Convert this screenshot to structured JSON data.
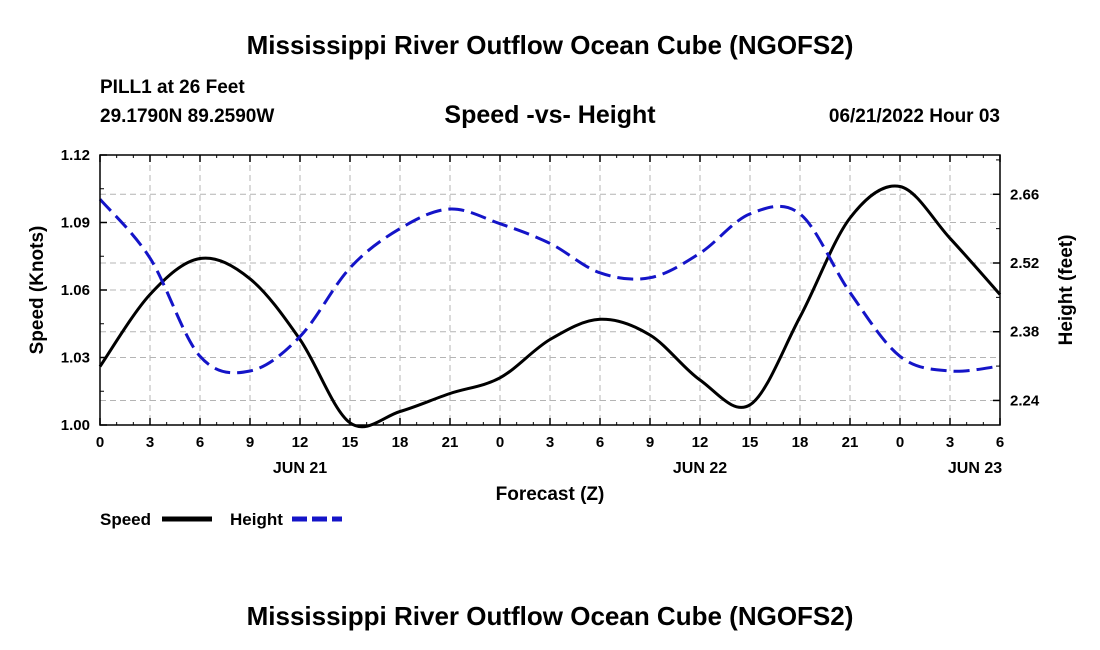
{
  "header": {
    "title": "Mississippi River Outflow Ocean Cube (NGOFS2)",
    "station": "PILL1 at 26 Feet",
    "coords": "29.1790N  89.2590W",
    "datetime": "06/21/2022 Hour 03",
    "bottom_title": "Mississippi River Outflow Ocean Cube (NGOFS2)"
  },
  "legend": {
    "speed_label": "Speed",
    "height_label": "Height"
  },
  "colors": {
    "speed": "#000000",
    "height": "#1414c8",
    "grid": "#b4b4b4"
  },
  "chart_data": {
    "type": "line",
    "title": "Speed -vs- Height",
    "xlabel": "Forecast (Z)",
    "ylabel": "Speed (Knots)",
    "y2label": "Height (feet)",
    "x_hours": [
      0,
      54
    ],
    "x_ticks": [
      {
        "h": 0,
        "label": "0"
      },
      {
        "h": 3,
        "label": "3"
      },
      {
        "h": 6,
        "label": "6"
      },
      {
        "h": 9,
        "label": "9"
      },
      {
        "h": 12,
        "label": "12"
      },
      {
        "h": 15,
        "label": "15"
      },
      {
        "h": 18,
        "label": "18"
      },
      {
        "h": 21,
        "label": "21"
      },
      {
        "h": 24,
        "label": "0"
      },
      {
        "h": 27,
        "label": "3"
      },
      {
        "h": 30,
        "label": "6"
      },
      {
        "h": 33,
        "label": "9"
      },
      {
        "h": 36,
        "label": "12"
      },
      {
        "h": 39,
        "label": "15"
      },
      {
        "h": 42,
        "label": "18"
      },
      {
        "h": 45,
        "label": "21"
      },
      {
        "h": 48,
        "label": "0"
      },
      {
        "h": 51,
        "label": "3"
      },
      {
        "h": 54,
        "label": "6"
      }
    ],
    "date_labels": [
      {
        "h": 12,
        "label": "JUN 21"
      },
      {
        "h": 36,
        "label": "JUN 22"
      },
      {
        "h": 52.5,
        "label": "JUN 23"
      }
    ],
    "ylim": [
      1.0,
      1.12
    ],
    "y_ticks": [
      1.0,
      1.03,
      1.06,
      1.09,
      1.12
    ],
    "y2lim": [
      2.19,
      2.74
    ],
    "y2_ticks": [
      2.24,
      2.38,
      2.52,
      2.66
    ],
    "series": [
      {
        "name": "Speed",
        "axis": "left",
        "dash": false,
        "x": [
          0,
          3,
          6,
          9,
          12,
          15,
          18,
          21,
          24,
          27,
          30,
          33,
          36,
          39,
          42,
          45,
          48,
          51,
          54
        ],
        "values": [
          1.026,
          1.058,
          1.074,
          1.065,
          1.038,
          1.001,
          1.006,
          1.014,
          1.021,
          1.038,
          1.047,
          1.04,
          1.02,
          1.009,
          1.048,
          1.092,
          1.106,
          1.083,
          1.058
        ]
      },
      {
        "name": "Height",
        "axis": "right",
        "dash": true,
        "x": [
          0,
          3,
          6,
          9,
          12,
          15,
          18,
          21,
          24,
          27,
          30,
          33,
          36,
          39,
          42,
          45,
          48,
          51,
          54
        ],
        "values": [
          2.65,
          2.53,
          2.33,
          2.3,
          2.37,
          2.51,
          2.59,
          2.63,
          2.6,
          2.56,
          2.5,
          2.49,
          2.54,
          2.62,
          2.62,
          2.46,
          2.33,
          2.3,
          2.31
        ]
      }
    ]
  }
}
